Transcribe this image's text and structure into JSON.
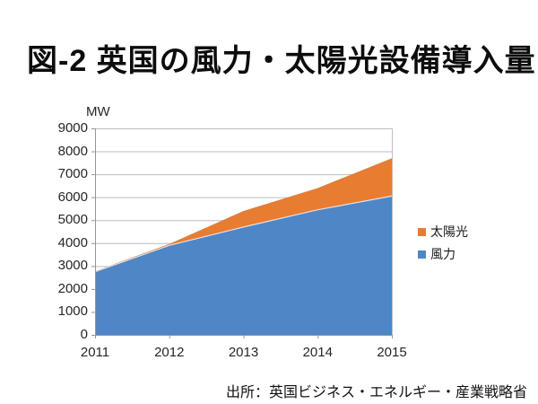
{
  "title": "図-2 英国の風力・太陽光設備導入量",
  "source_note": "出所：英国ビジネス・エネルギー・産業戦略省",
  "legend": {
    "items": [
      {
        "label": "太陽光",
        "color": "#E87C30"
      },
      {
        "label": "風力",
        "color": "#4E86C6"
      }
    ]
  },
  "chart_data": {
    "type": "area",
    "stacked": true,
    "title": "図-2 英国の風力・太陽光設備導入量",
    "ylabel": "MW",
    "ylim": [
      0,
      9000
    ],
    "yticks": [
      0,
      1000,
      2000,
      3000,
      4000,
      5000,
      6000,
      7000,
      8000,
      9000
    ],
    "categories": [
      "2011",
      "2012",
      "2013",
      "2014",
      "2015"
    ],
    "series": [
      {
        "name": "風力",
        "color": "#4E86C6",
        "values": [
          2750,
          3900,
          4700,
          5450,
          6050
        ]
      },
      {
        "name": "太陽光",
        "color": "#E87C30",
        "values": [
          30,
          60,
          700,
          950,
          1650
        ]
      }
    ],
    "totals": [
      2780,
      3960,
      5400,
      6400,
      7700
    ],
    "grid": true,
    "legend_position": "right",
    "legend_order": [
      "太陽光",
      "風力"
    ]
  },
  "colors": {
    "wind": "#4E86C6",
    "solar": "#E87C30",
    "gridline": "#BDBDBD",
    "axis": "#969696",
    "series_divider": "#D9E4F2",
    "text": "#262626"
  }
}
